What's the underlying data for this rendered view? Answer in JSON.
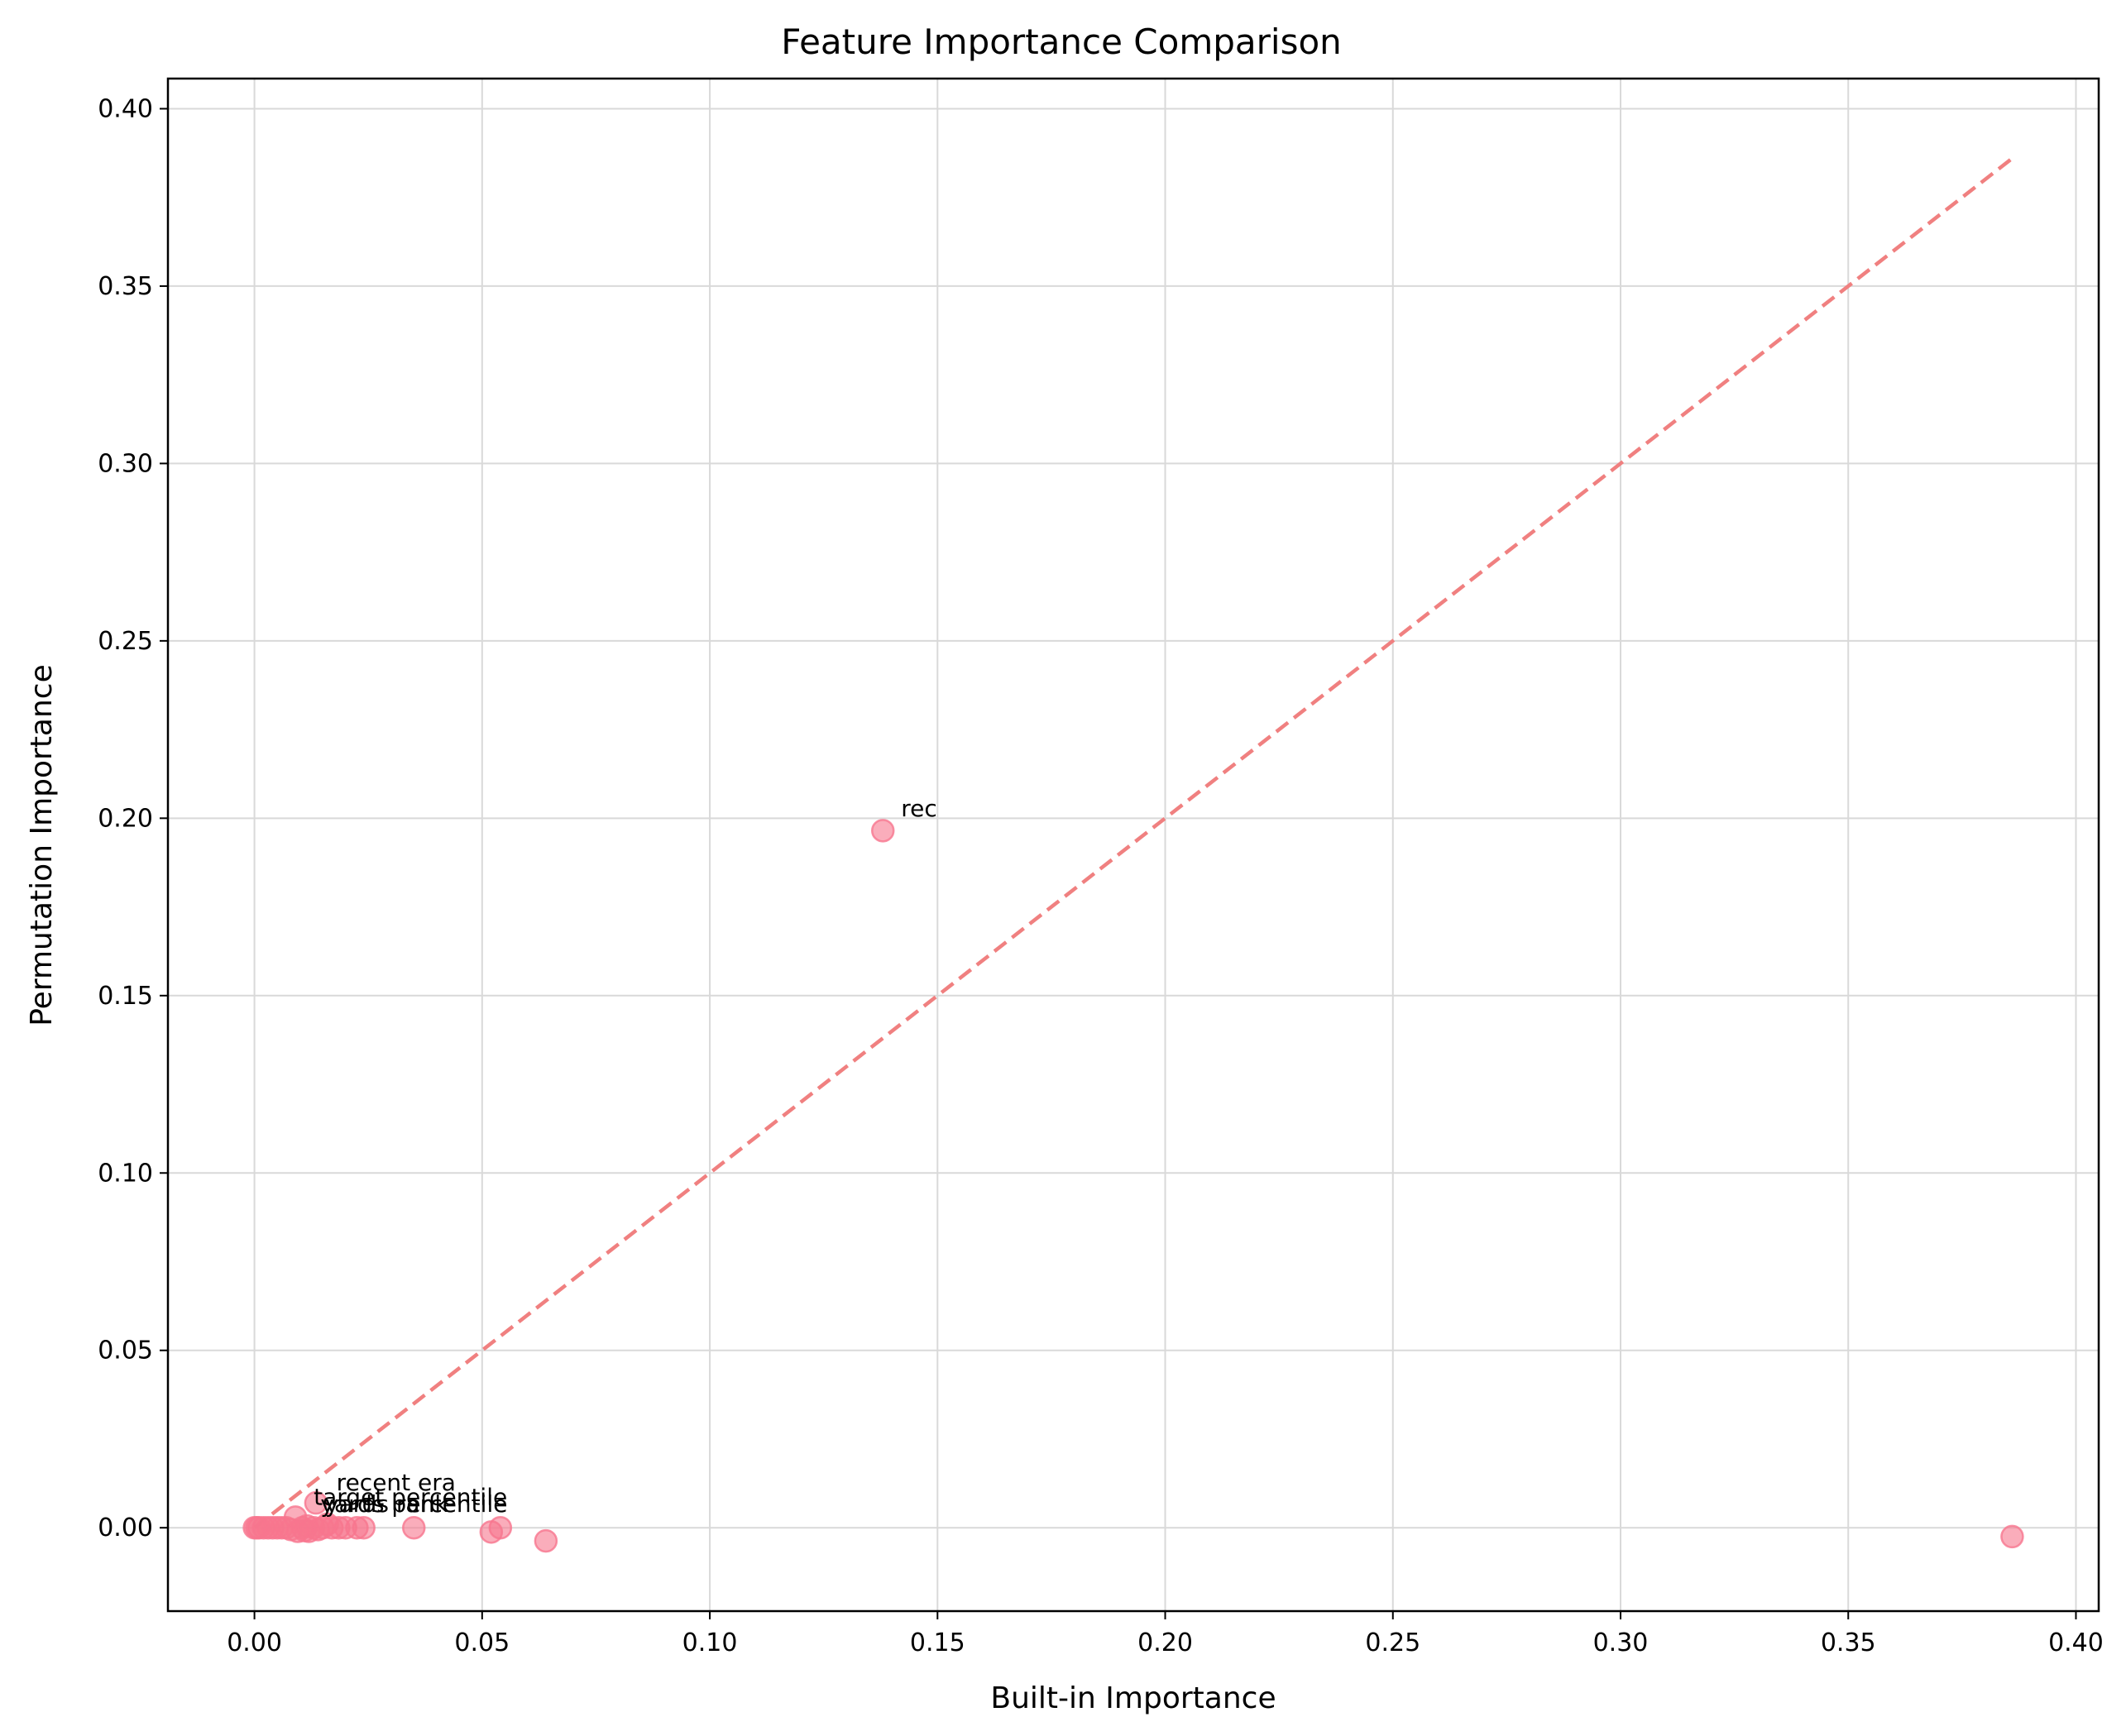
{
  "chart_data": {
    "type": "scatter",
    "title": "Feature Importance Comparison",
    "xlabel": "Built-in Importance",
    "ylabel": "Permutation Importance",
    "xlim": [
      -0.019,
      0.405
    ],
    "ylim": [
      -0.0235,
      0.4085
    ],
    "xticks": [
      0.0,
      0.05,
      0.1,
      0.15,
      0.2,
      0.25,
      0.3,
      0.35,
      0.4
    ],
    "xtick_labels": [
      "0.00",
      "0.05",
      "0.10",
      "0.15",
      "0.20",
      "0.25",
      "0.30",
      "0.35",
      "0.40"
    ],
    "yticks": [
      0.0,
      0.05,
      0.1,
      0.15,
      0.2,
      0.25,
      0.3,
      0.35,
      0.4
    ],
    "ytick_labels": [
      "0.00",
      "0.05",
      "0.10",
      "0.15",
      "0.20",
      "0.25",
      "0.30",
      "0.35",
      "0.40"
    ],
    "grid": true,
    "marker_color": "#f7768e",
    "reference_line": {
      "style": "dashed",
      "color": "#f08080",
      "from": [
        0.0,
        0.0
      ],
      "to": [
        0.386,
        0.386
      ]
    },
    "points": [
      {
        "x": 0.0,
        "y": 0.0
      },
      {
        "x": 0.0005,
        "y": 0.0
      },
      {
        "x": 0.001,
        "y": 0.0
      },
      {
        "x": 0.002,
        "y": 0.0
      },
      {
        "x": 0.003,
        "y": 0.0
      },
      {
        "x": 0.004,
        "y": 0.0
      },
      {
        "x": 0.005,
        "y": 0.0
      },
      {
        "x": 0.006,
        "y": 0.0
      },
      {
        "x": 0.007,
        "y": 0.0
      },
      {
        "x": 0.008,
        "y": -0.0005
      },
      {
        "x": 0.009,
        "y": 0.003
      },
      {
        "x": 0.0095,
        "y": -0.001
      },
      {
        "x": 0.0105,
        "y": 0.0
      },
      {
        "x": 0.011,
        "y": -0.0008
      },
      {
        "x": 0.0115,
        "y": 0.0005
      },
      {
        "x": 0.012,
        "y": -0.001
      },
      {
        "x": 0.013,
        "y": 0.0
      },
      {
        "x": 0.0135,
        "y": 0.007
      },
      {
        "x": 0.014,
        "y": -0.0005
      },
      {
        "x": 0.015,
        "y": 0.0
      },
      {
        "x": 0.016,
        "y": 0.001
      },
      {
        "x": 0.017,
        "y": 0.0
      },
      {
        "x": 0.0185,
        "y": 0.0
      },
      {
        "x": 0.02,
        "y": 0.0
      },
      {
        "x": 0.0225,
        "y": 0.0
      },
      {
        "x": 0.024,
        "y": 0.0
      },
      {
        "x": 0.035,
        "y": 0.0
      },
      {
        "x": 0.052,
        "y": -0.0012
      },
      {
        "x": 0.054,
        "y": 0.0
      },
      {
        "x": 0.064,
        "y": -0.0037
      },
      {
        "x": 0.138,
        "y": 0.1965
      },
      {
        "x": 0.386,
        "y": -0.0025
      }
    ],
    "annotations": [
      {
        "text": "rec",
        "x": 0.142,
        "y": 0.2005
      },
      {
        "text": "recent era",
        "x": 0.018,
        "y": 0.0105
      },
      {
        "text": "target percentile",
        "x": 0.013,
        "y": 0.0065
      },
      {
        "text": "yards percentile",
        "x": 0.0145,
        "y": 0.0045
      },
      {
        "text": "yards rank",
        "x": 0.0155,
        "y": 0.0045
      }
    ]
  }
}
